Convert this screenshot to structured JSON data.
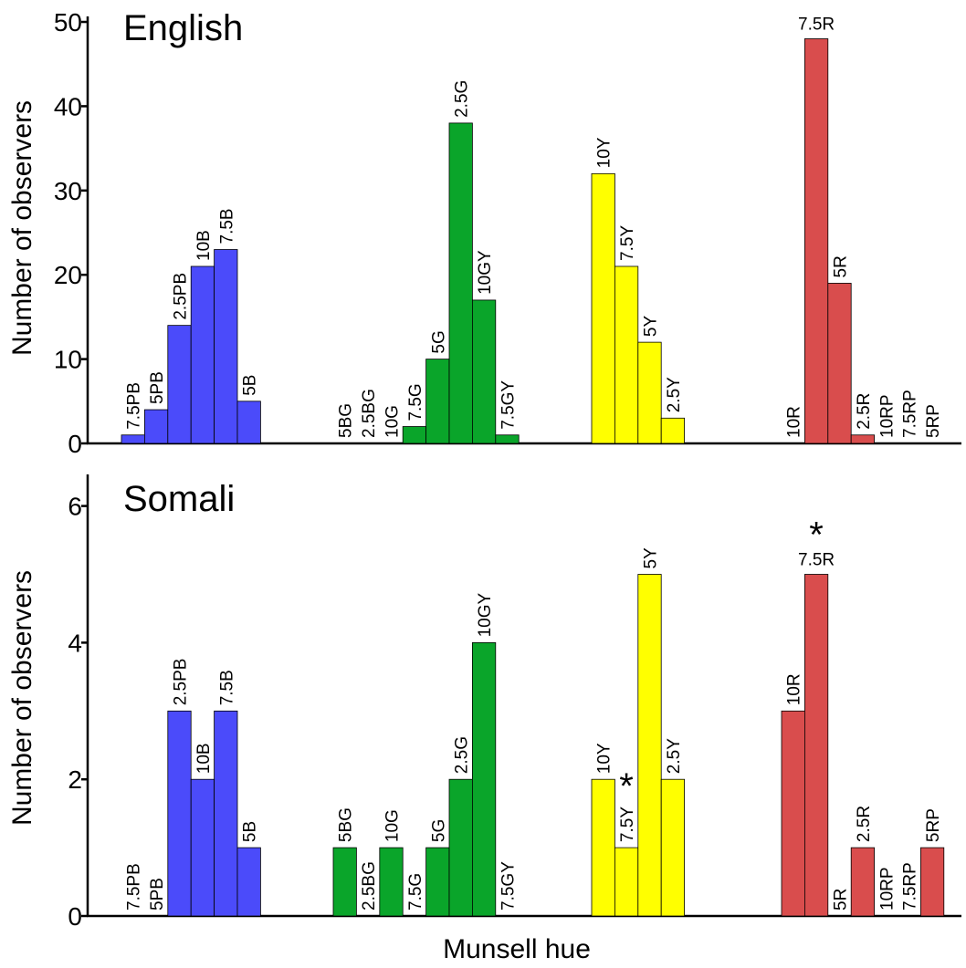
{
  "chart_data": [
    {
      "type": "bar",
      "title": "English",
      "xlabel": "",
      "ylabel": "Number of observers",
      "ylim": [
        0,
        50
      ],
      "yticks": [
        0,
        10,
        20,
        30,
        40,
        50
      ],
      "grid": false,
      "groups": [
        {
          "color": "#4b4bfa",
          "bars": [
            {
              "label": "7.5PB",
              "value": 1
            },
            {
              "label": "5PB",
              "value": 4
            },
            {
              "label": "2.5PB",
              "value": 14
            },
            {
              "label": "10B",
              "value": 21
            },
            {
              "label": "7.5B",
              "value": 23
            },
            {
              "label": "5B",
              "value": 5
            }
          ]
        },
        {
          "color": "#0aa52a",
          "bars": [
            {
              "label": "5BG",
              "value": 0
            },
            {
              "label": "2.5BG",
              "value": 0
            },
            {
              "label": "10G",
              "value": 0
            },
            {
              "label": "7.5G",
              "value": 2
            },
            {
              "label": "5G",
              "value": 10
            },
            {
              "label": "2.5G",
              "value": 38
            },
            {
              "label": "10GY",
              "value": 17
            },
            {
              "label": "7.5GY",
              "value": 1
            }
          ]
        },
        {
          "color": "#ffff00",
          "bars": [
            {
              "label": "10Y",
              "value": 32
            },
            {
              "label": "7.5Y",
              "value": 21
            },
            {
              "label": "5Y",
              "value": 12
            },
            {
              "label": "2.5Y",
              "value": 3
            }
          ]
        },
        {
          "color": "#d94d4d",
          "bars": [
            {
              "label": "10R",
              "value": 0
            },
            {
              "label": "7.5R",
              "value": 48
            },
            {
              "label": "5R",
              "value": 19
            },
            {
              "label": "2.5R",
              "value": 1
            },
            {
              "label": "10RP",
              "value": 0
            },
            {
              "label": "7.5RP",
              "value": 0
            },
            {
              "label": "5RP",
              "value": 0
            }
          ]
        }
      ]
    },
    {
      "type": "bar",
      "title": "Somali",
      "xlabel": "Munsell hue",
      "ylabel": "Number of observers",
      "ylim": [
        0,
        6.4
      ],
      "yticks": [
        0,
        2,
        4,
        6
      ],
      "grid": false,
      "groups": [
        {
          "color": "#4b4bfa",
          "bars": [
            {
              "label": "7.5PB",
              "value": 0
            },
            {
              "label": "5PB",
              "value": 0
            },
            {
              "label": "2.5PB",
              "value": 3
            },
            {
              "label": "10B",
              "value": 2
            },
            {
              "label": "7.5B",
              "value": 3
            },
            {
              "label": "5B",
              "value": 1
            }
          ]
        },
        {
          "color": "#0aa52a",
          "bars": [
            {
              "label": "5BG",
              "value": 1
            },
            {
              "label": "2.5BG",
              "value": 0
            },
            {
              "label": "10G",
              "value": 1
            },
            {
              "label": "7.5G",
              "value": 0
            },
            {
              "label": "5G",
              "value": 1
            },
            {
              "label": "2.5G",
              "value": 2
            },
            {
              "label": "10GY",
              "value": 4
            },
            {
              "label": "7.5GY",
              "value": 0
            }
          ]
        },
        {
          "color": "#ffff00",
          "bars": [
            {
              "label": "10Y",
              "value": 2
            },
            {
              "label": "7.5Y",
              "value": 1,
              "star": "*"
            },
            {
              "label": "5Y",
              "value": 5
            },
            {
              "label": "2.5Y",
              "value": 2
            }
          ]
        },
        {
          "color": "#d94d4d",
          "bars": [
            {
              "label": "10R",
              "value": 3
            },
            {
              "label": "7.5R",
              "value": 5,
              "star": "*"
            },
            {
              "label": "5R",
              "value": 0
            },
            {
              "label": "2.5R",
              "value": 1
            },
            {
              "label": "10RP",
              "value": 0
            },
            {
              "label": "7.5RP",
              "value": 0
            },
            {
              "label": "5RP",
              "value": 1
            }
          ]
        }
      ]
    }
  ]
}
